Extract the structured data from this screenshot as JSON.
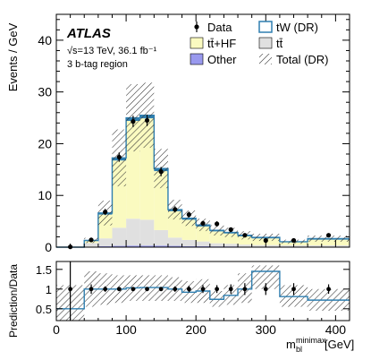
{
  "chart_data": {
    "type": "bar",
    "experiment": "ATLAS",
    "energy_label": "√s=13 TeV, 36.1 fb⁻¹",
    "region": "3 b-tag region",
    "ylabel": "Events / GeV",
    "xlabel": "m_bl^minimax [GeV]",
    "xlabel_main": "m",
    "xlabel_sub": "bl",
    "xlabel_sup": "minimax",
    "xlabel_unit": "[GeV]",
    "ratio_ylabel": "Prediction/Data",
    "xlim": [
      0,
      420
    ],
    "ylim": [
      0,
      45
    ],
    "ratio_ylim": [
      0.2,
      1.7
    ],
    "x_ticks": [
      "0",
      "100",
      "200",
      "300",
      "400"
    ],
    "y_ticks": [
      "0",
      "10",
      "20",
      "30",
      "40"
    ],
    "ratio_y_ticks": [
      "0.5",
      "1",
      "1.5"
    ],
    "bin_edges": [
      0,
      40,
      60,
      80,
      100,
      120,
      140,
      160,
      180,
      200,
      220,
      240,
      260,
      280,
      320,
      360,
      420
    ],
    "series": [
      {
        "name": "Other",
        "color": "#9999ee",
        "values": [
          0.0,
          0.1,
          0.2,
          0.25,
          0.3,
          0.3,
          0.3,
          0.25,
          0.2,
          0.2,
          0.15,
          0.15,
          0.1,
          0.1,
          0.05,
          0.05
        ]
      },
      {
        "name": "tt̄",
        "color": "#e0e0e0",
        "values": [
          0.0,
          0.7,
          1.5,
          3.5,
          5.2,
          5.0,
          3.0,
          1.6,
          1.2,
          0.9,
          0.6,
          0.5,
          0.4,
          0.3,
          0.3,
          0.3
        ]
      },
      {
        "name": "tt̄+HF",
        "color": "#fafac0",
        "values": [
          0.0,
          0.4,
          4.6,
          13.0,
          18.9,
          19.6,
          11.4,
          5.1,
          3.9,
          2.9,
          2.3,
          2.0,
          1.6,
          1.3,
          0.6,
          1.1
        ]
      },
      {
        "name": "tW (DR)",
        "color": "#2f7fb0",
        "values": [
          0.0,
          0.1,
          0.3,
          0.5,
          0.6,
          0.6,
          0.5,
          0.3,
          0.3,
          0.3,
          0.2,
          0.2,
          0.2,
          0.2,
          0.1,
          0.2
        ]
      }
    ],
    "total": [
      0.0,
      1.3,
      6.6,
      17.25,
      25.0,
      25.5,
      15.2,
      7.25,
      5.6,
      4.3,
      3.25,
      2.85,
      2.3,
      1.9,
      1.05,
      1.65
    ],
    "total_unc": [
      0.05,
      0.5,
      2.4,
      5.5,
      6.5,
      6.3,
      3.8,
      1.9,
      1.5,
      1.2,
      1.0,
      0.9,
      0.8,
      0.7,
      0.4,
      0.6
    ],
    "data": {
      "name": "Data",
      "x": [
        20,
        50,
        70,
        90,
        110,
        130,
        150,
        170,
        190,
        210,
        230,
        250,
        270,
        300,
        340,
        390
      ],
      "y": [
        0.05,
        1.4,
        6.8,
        17.4,
        24.3,
        24.5,
        14.6,
        7.3,
        6.3,
        4.6,
        4.5,
        3.4,
        2.3,
        1.3,
        1.3,
        2.3
      ],
      "err": [
        0.05,
        0.3,
        0.6,
        0.9,
        1.1,
        1.1,
        0.9,
        0.6,
        0.55,
        0.5,
        0.5,
        0.4,
        0.35,
        0.2,
        0.2,
        0.2
      ]
    },
    "ratio": {
      "values": [
        0.5,
        1.0,
        1.0,
        1.0,
        1.03,
        1.04,
        1.04,
        1.0,
        0.92,
        0.95,
        0.74,
        0.84,
        1.0,
        1.45,
        0.81,
        0.72
      ],
      "unc_lo": [
        0.2,
        0.55,
        0.6,
        0.65,
        0.7,
        0.7,
        0.7,
        0.7,
        0.65,
        0.65,
        0.55,
        0.6,
        0.65,
        1.0,
        0.55,
        0.45
      ],
      "unc_hi": [
        1.1,
        1.45,
        1.4,
        1.35,
        1.35,
        1.35,
        1.35,
        1.3,
        1.2,
        1.25,
        0.95,
        1.1,
        1.4,
        1.6,
        1.1,
        1.0
      ],
      "data_x": [
        20,
        50,
        70,
        90,
        110,
        130,
        150,
        170,
        190,
        210,
        230,
        250,
        270,
        300,
        340,
        390
      ],
      "data_y": [
        1.0,
        1.0,
        1.0,
        1.0,
        1.0,
        1.0,
        1.0,
        1.0,
        1.0,
        1.0,
        1.0,
        1.0,
        1.0,
        1.0,
        1.0,
        1.0
      ],
      "data_err": [
        0.9,
        0.12,
        0.07,
        0.05,
        0.04,
        0.04,
        0.05,
        0.07,
        0.08,
        0.1,
        0.1,
        0.12,
        0.15,
        0.15,
        0.15,
        0.12
      ]
    },
    "legend": {
      "placement": "top-right",
      "entries": [
        "Data",
        "tW (DR)",
        "tt̄+HF",
        "tt̄",
        "Other",
        "Total (DR)"
      ]
    },
    "grid": false
  }
}
